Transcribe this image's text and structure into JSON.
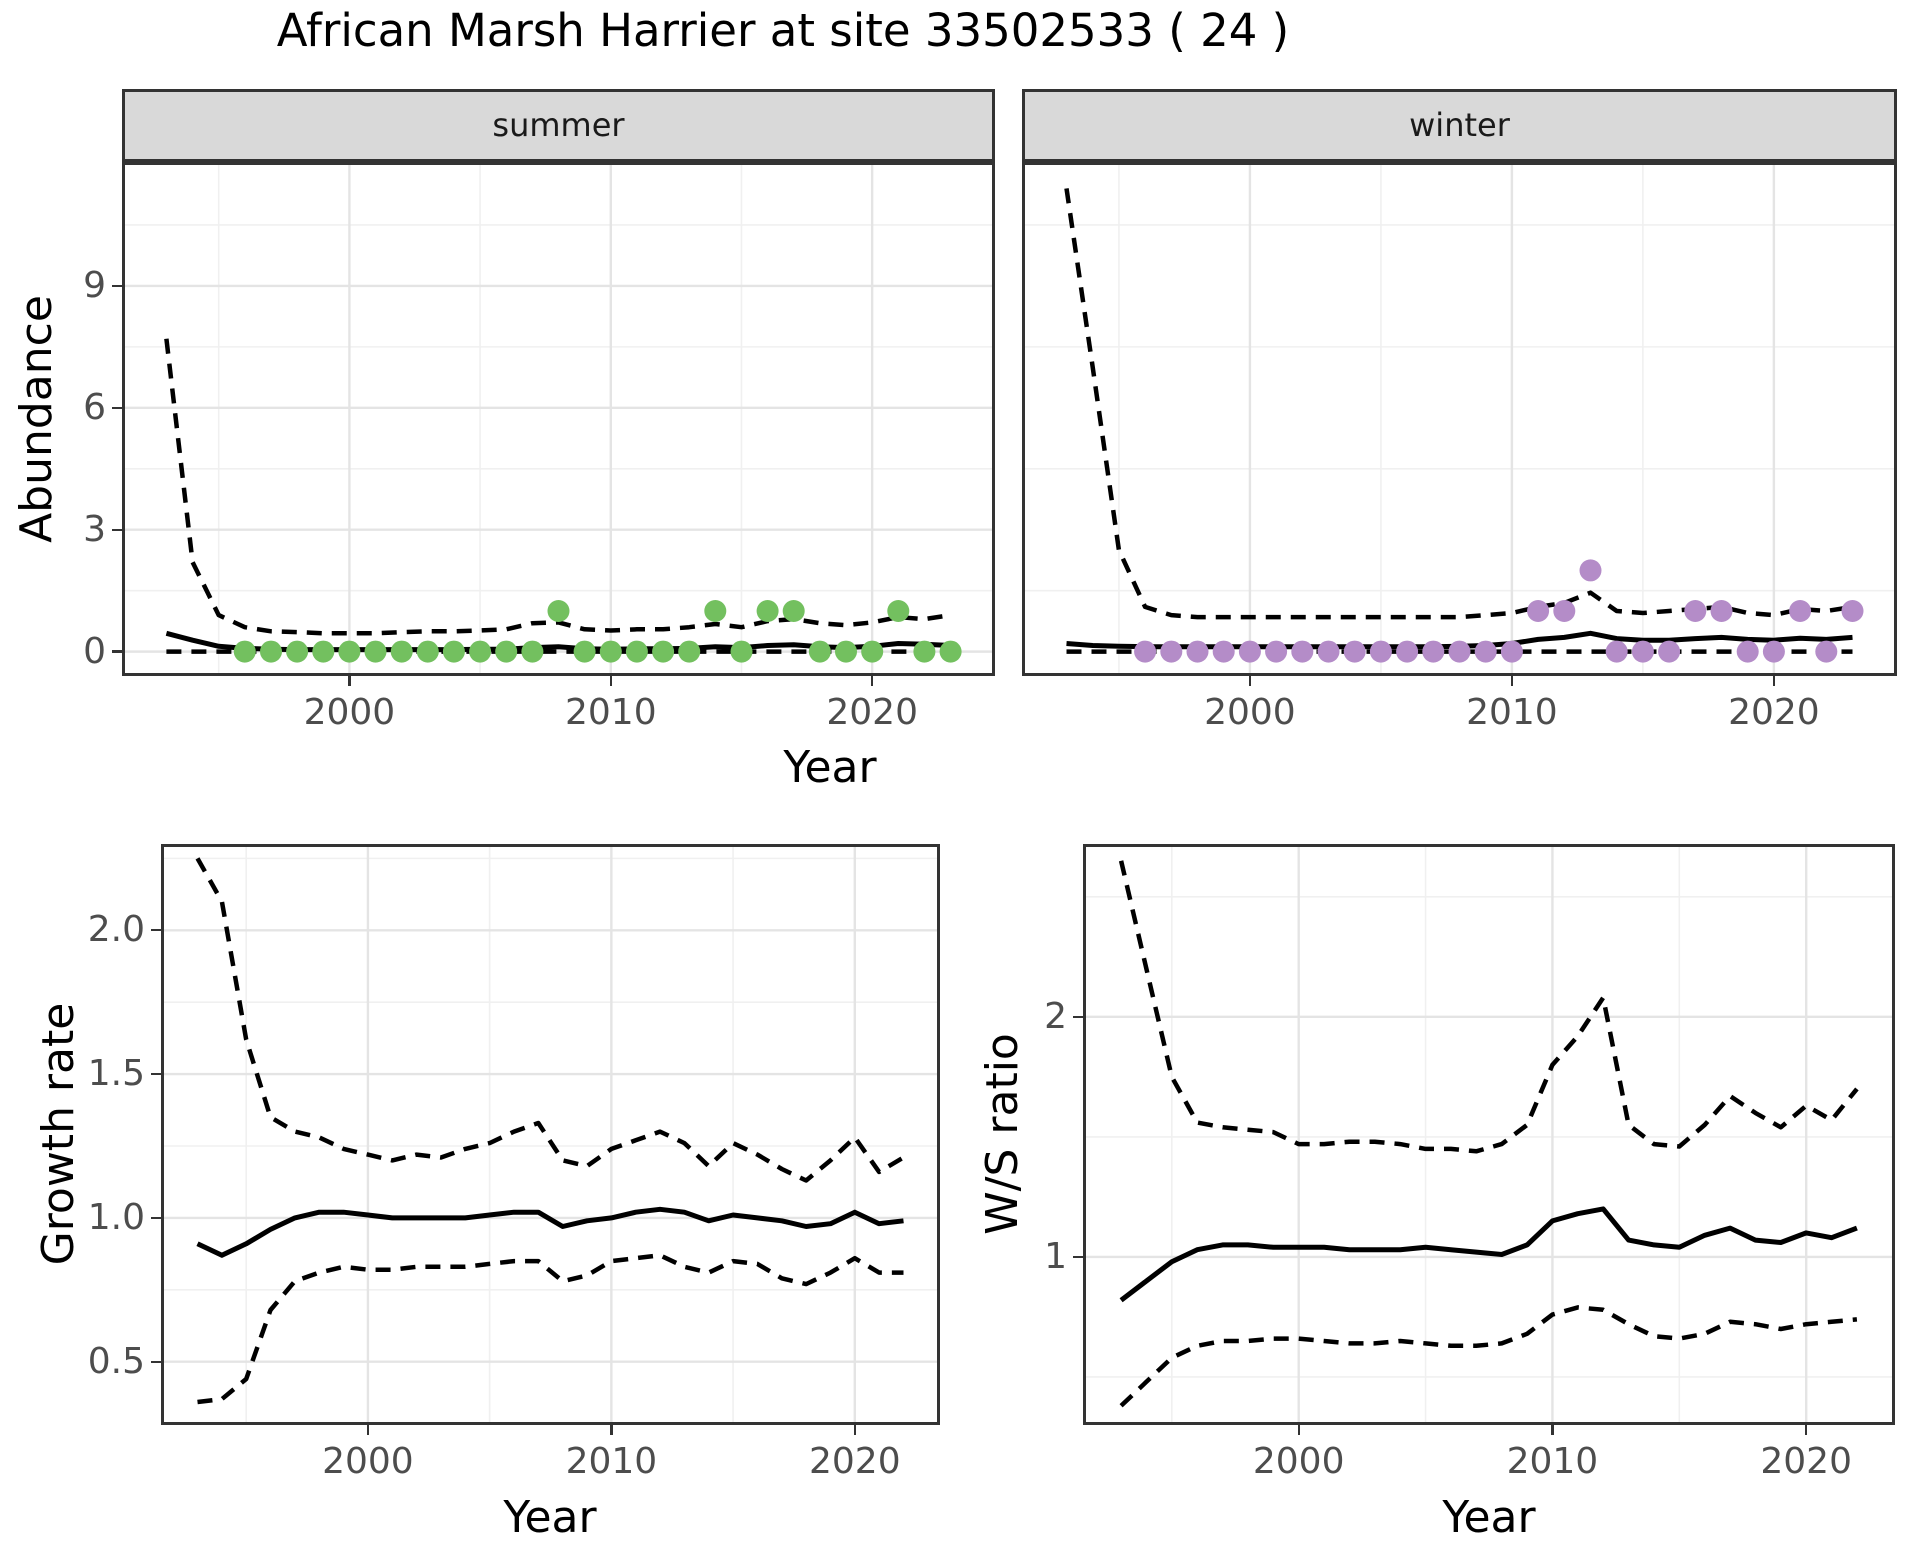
{
  "title": "African Marsh Harrier at site 33502533 ( 24 )",
  "facets": {
    "summer": "summer",
    "winter": "winter"
  },
  "labels": {
    "abundance": "Abundance",
    "year_top": "Year",
    "growth_rate": "Growth rate",
    "ws_ratio": "W/S ratio",
    "year_bottom_left": "Year",
    "year_bottom_right": "Year"
  },
  "colors": {
    "summer_points": "#73c05f",
    "winter_points": "#b48cc8",
    "line": "#000000",
    "panel_border": "#333333",
    "grid_major": "#e4e4e4",
    "grid_minor": "#f0f0f0",
    "strip_bg": "#d9d9d9",
    "axis_text": "#4d4d4d"
  },
  "chart_data": [
    {
      "id": "summer",
      "type": "line",
      "title": "summer",
      "xlabel": "Year",
      "ylabel": "Abundance",
      "x_domain": [
        1991.3,
        2024.7
      ],
      "y_domain": [
        -0.6,
        12.05
      ],
      "x_ticks": [
        {
          "v": 2000,
          "label": "2000"
        },
        {
          "v": 2010,
          "label": "2010"
        },
        {
          "v": 2020,
          "label": "2020"
        }
      ],
      "y_ticks": [
        {
          "v": 0,
          "label": "0"
        },
        {
          "v": 3,
          "label": "3"
        },
        {
          "v": 6,
          "label": "6"
        },
        {
          "v": 9,
          "label": "9"
        }
      ],
      "x_minor": [
        1995,
        2005,
        2015
      ],
      "y_minor": [
        1.5,
        4.5,
        7.5,
        10.5
      ],
      "years": [
        1993,
        1994,
        1995,
        1996,
        1997,
        1998,
        1999,
        2000,
        2001,
        2002,
        2003,
        2004,
        2005,
        2006,
        2007,
        2008,
        2009,
        2010,
        2011,
        2012,
        2013,
        2014,
        2015,
        2016,
        2017,
        2018,
        2019,
        2020,
        2021,
        2022,
        2023
      ],
      "series": [
        {
          "name": "upper_ci",
          "style": "dashed",
          "values": [
            7.7,
            2.2,
            0.9,
            0.6,
            0.5,
            0.48,
            0.45,
            0.45,
            0.45,
            0.48,
            0.5,
            0.5,
            0.52,
            0.55,
            0.7,
            0.72,
            0.55,
            0.52,
            0.55,
            0.55,
            0.6,
            0.68,
            0.6,
            0.75,
            0.8,
            0.7,
            0.65,
            0.72,
            0.85,
            0.8,
            0.9
          ]
        },
        {
          "name": "median",
          "style": "solid",
          "values": [
            0.45,
            0.28,
            0.13,
            0.08,
            0.06,
            0.05,
            0.05,
            0.05,
            0.05,
            0.05,
            0.05,
            0.05,
            0.06,
            0.06,
            0.1,
            0.12,
            0.07,
            0.06,
            0.07,
            0.07,
            0.08,
            0.12,
            0.1,
            0.15,
            0.17,
            0.12,
            0.1,
            0.13,
            0.2,
            0.18,
            0.15
          ]
        },
        {
          "name": "lower_ci",
          "style": "dashed",
          "values": [
            0,
            0,
            0,
            0,
            0,
            0,
            0,
            0,
            0,
            0,
            0,
            0,
            0,
            0,
            0,
            0,
            0,
            0,
            0,
            0,
            0,
            0,
            0,
            0,
            0,
            0,
            0,
            0,
            0,
            0,
            0
          ]
        }
      ],
      "points": {
        "color": "summer_points",
        "years": [
          1996,
          1997,
          1998,
          1999,
          2000,
          2001,
          2002,
          2003,
          2004,
          2005,
          2006,
          2007,
          2008,
          2009,
          2010,
          2011,
          2012,
          2013,
          2014,
          2015,
          2016,
          2017,
          2018,
          2019,
          2020,
          2021,
          2022,
          2023
        ],
        "values": [
          0,
          0,
          0,
          0,
          0,
          0,
          0,
          0,
          0,
          0,
          0,
          0,
          1,
          0,
          0,
          0,
          0,
          0,
          1,
          0,
          1,
          1,
          0,
          0,
          0,
          1,
          0,
          0
        ]
      }
    },
    {
      "id": "winter",
      "type": "line",
      "title": "winter",
      "xlabel": "Year",
      "ylabel": "Abundance",
      "x_domain": [
        1991.3,
        2024.7
      ],
      "y_domain": [
        -0.6,
        12.05
      ],
      "x_ticks": [
        {
          "v": 2000,
          "label": "2000"
        },
        {
          "v": 2010,
          "label": "2010"
        },
        {
          "v": 2020,
          "label": "2020"
        }
      ],
      "y_ticks": [],
      "x_minor": [
        1995,
        2005,
        2015
      ],
      "y_minor": [
        1.5,
        4.5,
        7.5,
        10.5
      ],
      "years": [
        1993,
        1994,
        1995,
        1996,
        1997,
        1998,
        1999,
        2000,
        2001,
        2002,
        2003,
        2004,
        2005,
        2006,
        2007,
        2008,
        2009,
        2010,
        2011,
        2012,
        2013,
        2014,
        2015,
        2016,
        2017,
        2018,
        2019,
        2020,
        2021,
        2022,
        2023
      ],
      "series": [
        {
          "name": "upper_ci",
          "style": "dashed",
          "values": [
            11.4,
            7.0,
            2.5,
            1.1,
            0.9,
            0.85,
            0.85,
            0.85,
            0.85,
            0.85,
            0.85,
            0.85,
            0.85,
            0.85,
            0.85,
            0.85,
            0.9,
            0.95,
            1.1,
            1.2,
            1.45,
            1.0,
            0.95,
            1.0,
            1.05,
            1.1,
            0.95,
            0.9,
            1.05,
            1.0,
            1.1
          ]
        },
        {
          "name": "median",
          "style": "solid",
          "values": [
            0.2,
            0.15,
            0.13,
            0.12,
            0.12,
            0.12,
            0.12,
            0.12,
            0.12,
            0.12,
            0.12,
            0.12,
            0.12,
            0.12,
            0.12,
            0.13,
            0.15,
            0.2,
            0.3,
            0.35,
            0.45,
            0.32,
            0.28,
            0.28,
            0.32,
            0.35,
            0.3,
            0.28,
            0.33,
            0.3,
            0.35
          ]
        },
        {
          "name": "lower_ci",
          "style": "dashed",
          "values": [
            0,
            0,
            0,
            0,
            0,
            0,
            0,
            0,
            0,
            0,
            0,
            0,
            0,
            0,
            0,
            0,
            0,
            0,
            0,
            0,
            0,
            0,
            0,
            0,
            0,
            0,
            0,
            0,
            0,
            0,
            0
          ]
        }
      ],
      "points": {
        "color": "winter_points",
        "years": [
          1996,
          1997,
          1998,
          1999,
          2000,
          2001,
          2002,
          2003,
          2004,
          2005,
          2006,
          2007,
          2008,
          2009,
          2010,
          2011,
          2012,
          2013,
          2014,
          2015,
          2016,
          2017,
          2018,
          2019,
          2020,
          2021,
          2022,
          2023
        ],
        "values": [
          0,
          0,
          0,
          0,
          0,
          0,
          0,
          0,
          0,
          0,
          0,
          0,
          0,
          0,
          0,
          1,
          1,
          2,
          0,
          0,
          0,
          1,
          1,
          0,
          0,
          1,
          0,
          1
        ]
      }
    },
    {
      "id": "growth",
      "type": "line",
      "title": "",
      "xlabel": "Year",
      "ylabel": "Growth rate",
      "x_domain": [
        1991.5,
        2023.5
      ],
      "y_domain": [
        0.28,
        2.3
      ],
      "x_ticks": [
        {
          "v": 2000,
          "label": "2000"
        },
        {
          "v": 2010,
          "label": "2010"
        },
        {
          "v": 2020,
          "label": "2020"
        }
      ],
      "y_ticks": [
        {
          "v": 0.5,
          "label": "0.5"
        },
        {
          "v": 1.0,
          "label": "1.0"
        },
        {
          "v": 1.5,
          "label": "1.5"
        },
        {
          "v": 2.0,
          "label": "2.0"
        }
      ],
      "x_minor": [
        1995,
        2005,
        2015
      ],
      "y_minor": [
        0.75,
        1.25,
        1.75,
        2.25
      ],
      "years": [
        1993,
        1994,
        1995,
        1996,
        1997,
        1998,
        1999,
        2000,
        2001,
        2002,
        2003,
        2004,
        2005,
        2006,
        2007,
        2008,
        2009,
        2010,
        2011,
        2012,
        2013,
        2014,
        2015,
        2016,
        2017,
        2018,
        2019,
        2020,
        2021,
        2022
      ],
      "series": [
        {
          "name": "upper_ci",
          "style": "dashed",
          "values": [
            2.25,
            2.1,
            1.62,
            1.35,
            1.3,
            1.28,
            1.24,
            1.22,
            1.2,
            1.22,
            1.21,
            1.24,
            1.26,
            1.3,
            1.33,
            1.2,
            1.18,
            1.24,
            1.27,
            1.3,
            1.26,
            1.18,
            1.26,
            1.22,
            1.17,
            1.13,
            1.2,
            1.28,
            1.16,
            1.21
          ]
        },
        {
          "name": "median",
          "style": "solid",
          "values": [
            0.91,
            0.87,
            0.91,
            0.96,
            1.0,
            1.02,
            1.02,
            1.01,
            1.0,
            1.0,
            1.0,
            1.0,
            1.01,
            1.02,
            1.02,
            0.97,
            0.99,
            1.0,
            1.02,
            1.03,
            1.02,
            0.99,
            1.01,
            1.0,
            0.99,
            0.97,
            0.98,
            1.02,
            0.98,
            0.99
          ]
        },
        {
          "name": "lower_ci",
          "style": "dashed",
          "values": [
            0.36,
            0.37,
            0.44,
            0.68,
            0.78,
            0.81,
            0.83,
            0.82,
            0.82,
            0.83,
            0.83,
            0.83,
            0.84,
            0.85,
            0.85,
            0.78,
            0.8,
            0.85,
            0.86,
            0.87,
            0.83,
            0.81,
            0.85,
            0.84,
            0.79,
            0.77,
            0.81,
            0.86,
            0.81,
            0.81
          ]
        }
      ],
      "points": null
    },
    {
      "id": "ws",
      "type": "line",
      "title": "",
      "xlabel": "Year",
      "ylabel": "W/S ratio",
      "x_domain": [
        1991.5,
        2023.5
      ],
      "y_domain": [
        0.3,
        2.72
      ],
      "x_ticks": [
        {
          "v": 2000,
          "label": "2000"
        },
        {
          "v": 2010,
          "label": "2010"
        },
        {
          "v": 2020,
          "label": "2020"
        }
      ],
      "y_ticks": [
        {
          "v": 1,
          "label": "1"
        },
        {
          "v": 2,
          "label": "2"
        }
      ],
      "x_minor": [
        1995,
        2005,
        2015
      ],
      "y_minor": [
        0.5,
        1.5,
        2.5
      ],
      "years": [
        1993,
        1994,
        1995,
        1996,
        1997,
        1998,
        1999,
        2000,
        2001,
        2002,
        2003,
        2004,
        2005,
        2006,
        2007,
        2008,
        2009,
        2010,
        2011,
        2012,
        2013,
        2014,
        2015,
        2016,
        2017,
        2018,
        2019,
        2020,
        2021,
        2022
      ],
      "series": [
        {
          "name": "upper_ci",
          "style": "dashed",
          "values": [
            2.65,
            2.2,
            1.75,
            1.56,
            1.54,
            1.53,
            1.52,
            1.47,
            1.47,
            1.48,
            1.48,
            1.47,
            1.45,
            1.45,
            1.44,
            1.47,
            1.55,
            1.8,
            1.92,
            2.08,
            1.55,
            1.47,
            1.46,
            1.55,
            1.67,
            1.6,
            1.54,
            1.63,
            1.57,
            1.7
          ]
        },
        {
          "name": "median",
          "style": "solid",
          "values": [
            0.82,
            0.9,
            0.98,
            1.03,
            1.05,
            1.05,
            1.04,
            1.04,
            1.04,
            1.03,
            1.03,
            1.03,
            1.04,
            1.03,
            1.02,
            1.01,
            1.05,
            1.15,
            1.18,
            1.2,
            1.07,
            1.05,
            1.04,
            1.09,
            1.12,
            1.07,
            1.06,
            1.1,
            1.08,
            1.12
          ]
        },
        {
          "name": "lower_ci",
          "style": "dashed",
          "values": [
            0.38,
            0.48,
            0.58,
            0.63,
            0.65,
            0.65,
            0.66,
            0.66,
            0.65,
            0.64,
            0.64,
            0.65,
            0.64,
            0.63,
            0.63,
            0.64,
            0.68,
            0.76,
            0.79,
            0.78,
            0.72,
            0.67,
            0.66,
            0.68,
            0.73,
            0.72,
            0.7,
            0.72,
            0.73,
            0.74
          ]
        }
      ],
      "points": null
    }
  ]
}
